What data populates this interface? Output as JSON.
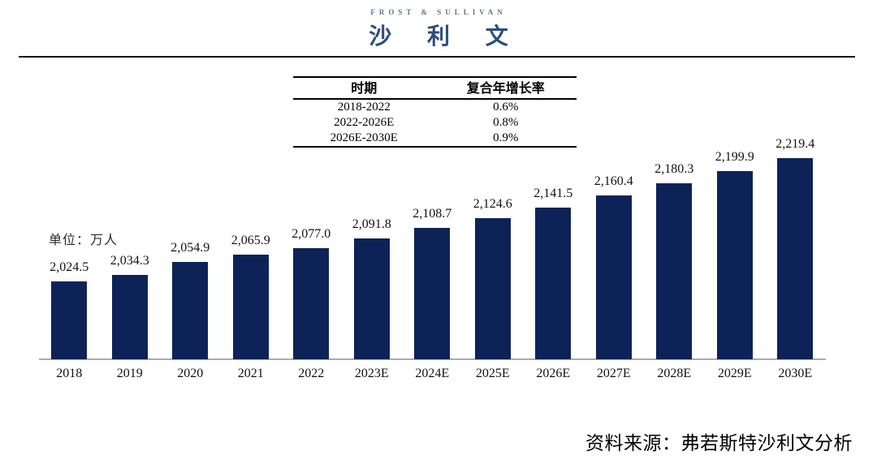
{
  "logo": {
    "top_text": "FROST & SULLIVAN",
    "main_text": "沙 利 文"
  },
  "cagr_table": {
    "headers": [
      "时期",
      "复合年增长率"
    ],
    "rows": [
      [
        "2018-2022",
        "0.6%"
      ],
      [
        "2022-2026E",
        "0.8%"
      ],
      [
        "2026E-2030E",
        "0.9%"
      ]
    ]
  },
  "unit_label": "单位：万人",
  "source_note": "资料来源：弗若斯特沙利文分析",
  "colors": {
    "bar": "#0d2357",
    "logo_navy": "#2e4d7e",
    "logo_gray": "#64748f",
    "axis": "#ababab"
  },
  "chart_data": {
    "type": "bar",
    "title": "",
    "xlabel": "",
    "ylabel": "单位：万人",
    "categories": [
      "2018",
      "2019",
      "2020",
      "2021",
      "2022",
      "2023E",
      "2024E",
      "2025E",
      "2026E",
      "2027E",
      "2028E",
      "2029E",
      "2030E"
    ],
    "values": [
      2024.5,
      2034.3,
      2054.9,
      2065.9,
      2077.0,
      2091.8,
      2108.7,
      2124.6,
      2141.5,
      2160.4,
      2180.3,
      2199.9,
      2219.4
    ],
    "value_labels": [
      "2,024.5",
      "2,034.3",
      "2,054.9",
      "2,065.9",
      "2,077.0",
      "2,091.8",
      "2,108.7",
      "2,124.6",
      "2,141.5",
      "2,160.4",
      "2,180.3",
      "2,199.9",
      "2,219.4"
    ],
    "ylim": [
      1900,
      2250
    ],
    "grid": false,
    "legend": "none",
    "bar_color": "#0d2357"
  }
}
